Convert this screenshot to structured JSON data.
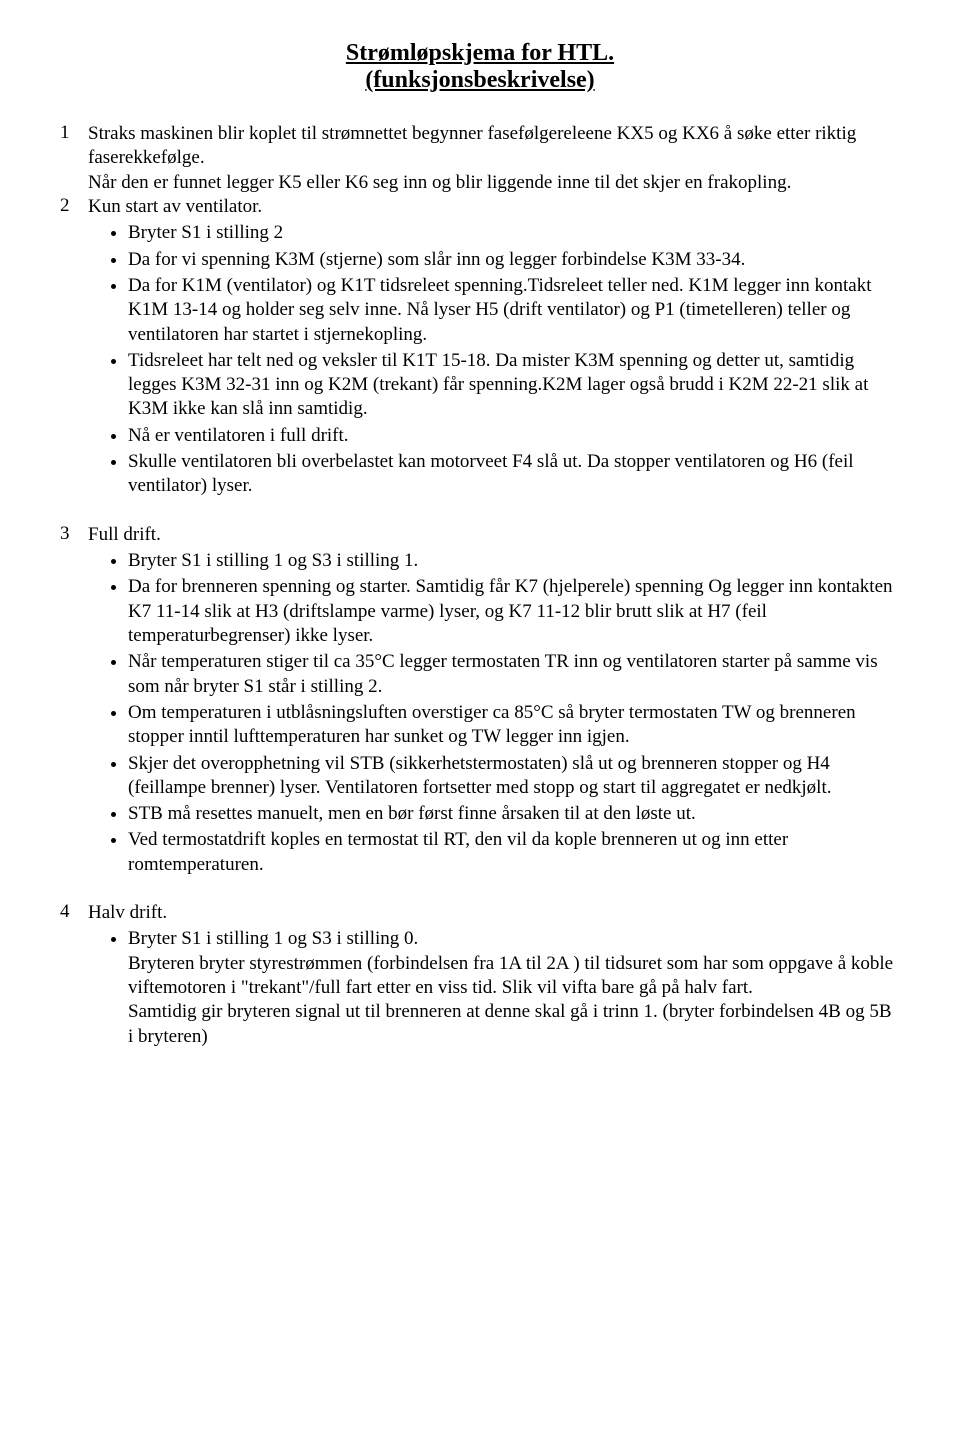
{
  "title": {
    "line1": "Strømløpskjema for HTL.",
    "line2": "(funksjonsbeskrivelse)"
  },
  "sections": [
    {
      "num": "1",
      "intro": "Straks maskinen blir koplet til strømnettet begynner fasefølgereleene KX5 og KX6 å søke etter riktig faserekkefølge.",
      "followNum": "2",
      "follow1": "Når den er funnet legger K5 eller K6 seg inn og blir liggende inne til det skjer en frakopling.",
      "follow2": "Kun start av ventilator.",
      "bullets": [
        "Bryter S1 i stilling 2",
        "Da for vi spenning K3M (stjerne) som slår inn og legger forbindelse K3M 33-34.",
        "Da for K1M (ventilator) og K1T tidsreleet spenning.Tidsreleet teller ned. K1M legger inn kontakt K1M 13-14 og holder seg selv inne. Nå lyser H5 (drift ventilator) og P1 (timetelleren) teller og ventilatoren har startet i stjernekopling.",
        "Tidsreleet har telt ned og veksler til K1T 15-18. Da mister K3M spenning og detter ut, samtidig legges K3M 32-31 inn og K2M (trekant) får spenning.K2M lager også brudd i K2M 22-21 slik at K3M ikke kan slå inn samtidig.",
        "Nå er ventilatoren i full drift.",
        "Skulle ventilatoren bli overbelastet kan motorveet F4 slå ut. Da stopper ventilatoren og H6 (feil ventilator) lyser."
      ]
    },
    {
      "num": "3",
      "intro": "Full drift.",
      "bullets": [
        "Bryter S1 i stilling 1 og S3 i stilling 1.",
        "Da for brenneren spenning og starter. Samtidig får K7 (hjelperele) spenning Og legger inn kontakten K7 11-14 slik at H3 (driftslampe varme) lyser, og K7 11-12 blir brutt slik at H7 (feil temperaturbegrenser) ikke lyser.",
        "Når temperaturen stiger til ca 35°C legger termostaten TR inn og ventilatoren starter på samme vis som når bryter S1 står i stilling 2.",
        "Om temperaturen i utblåsningsluften overstiger ca 85°C så bryter termostaten TW og brenneren stopper inntil lufttemperaturen har sunket og TW legger inn igjen.",
        "Skjer det overopphetning vil STB (sikkerhetstermostaten) slå ut og brenneren stopper og H4 (feillampe brenner) lyser. Ventilatoren fortsetter med stopp og start til aggregatet er nedkjølt.",
        "STB må resettes manuelt, men en bør først finne årsaken til at den løste ut.",
        "Ved termostatdrift koples en termostat til RT, den vil da kople brenneren ut og inn etter romtemperaturen."
      ]
    },
    {
      "num": "4",
      "intro": "Halv drift.",
      "bullets": [
        "Bryter S1 i stilling 1 og S3 i stilling 0.\nBryteren bryter styrestrømmen (forbindelsen fra 1A til 2A ) til tidsuret som har som oppgave å koble viftemotoren i \"trekant\"/full fart etter en viss tid. Slik vil vifta bare gå på halv fart.\nSamtidig gir bryteren signal ut til brenneren at denne skal gå i trinn 1. (bryter forbindelsen 4B og 5B i bryteren)"
      ]
    }
  ]
}
